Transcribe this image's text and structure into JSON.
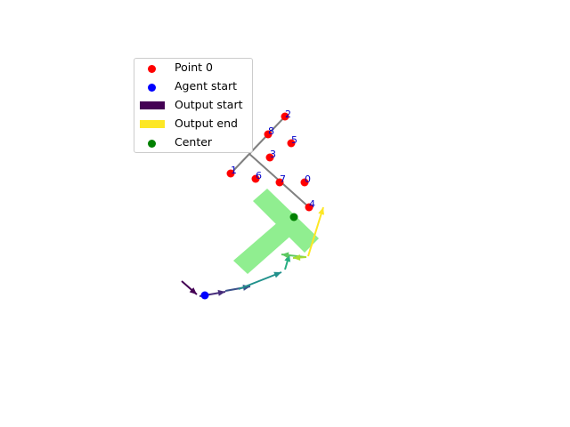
{
  "colors": {
    "point": "#ff0000",
    "agent_start": "#0000ff",
    "output_start": "#440154",
    "output_end": "#fde725",
    "center": "#008000",
    "region": "#90ee90",
    "skeleton": "#808080",
    "point_label": "#0000cc"
  },
  "legend": {
    "items": [
      {
        "label": "Point 0",
        "marker": "dot",
        "color": "#ff0000"
      },
      {
        "label": "Agent start",
        "marker": "dot",
        "color": "#0000ff"
      },
      {
        "label": "Output start",
        "marker": "patch",
        "color": "#440154"
      },
      {
        "label": "Output end",
        "marker": "patch",
        "color": "#fde725"
      },
      {
        "label": "Center",
        "marker": "dot",
        "color": "#008000"
      }
    ]
  },
  "points": [
    {
      "label": "0"
    },
    {
      "label": "1"
    },
    {
      "label": "2"
    },
    {
      "label": "3"
    },
    {
      "label": "4"
    },
    {
      "label": "5"
    },
    {
      "label": "6"
    },
    {
      "label": "7"
    },
    {
      "label": "8"
    }
  ]
}
